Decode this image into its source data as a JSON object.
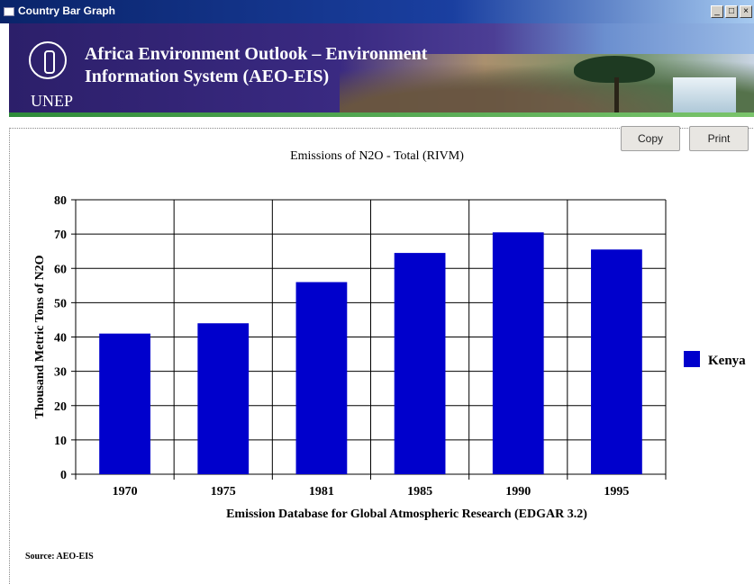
{
  "window": {
    "title": "Country Bar Graph"
  },
  "banner": {
    "org": "UNEP",
    "title_line1": "Africa Environment Outlook – Environment",
    "title_line2": "Information System (AEO-EIS)"
  },
  "toolbar": {
    "copy_label": "Copy",
    "print_label": "Print"
  },
  "source_text": "Source: AEO-EIS",
  "chart_data": {
    "type": "bar",
    "title": "Emissions of N2O - Total (RIVM)",
    "xlabel": "Emission Database for Global Atmospheric Research (EDGAR 3.2)",
    "ylabel": "Thousand Metric Tons of N2O",
    "categories": [
      "1970",
      "1975",
      "1981",
      "1985",
      "1990",
      "1995"
    ],
    "series": [
      {
        "name": "Kenya",
        "color": "#0000cc",
        "values": [
          41,
          44,
          56,
          64.5,
          70.5,
          65.5
        ]
      }
    ],
    "ylim": [
      0,
      80
    ],
    "yticks": [
      0,
      10,
      20,
      30,
      40,
      50,
      60,
      70,
      80
    ],
    "grid": true,
    "legend": "right"
  }
}
